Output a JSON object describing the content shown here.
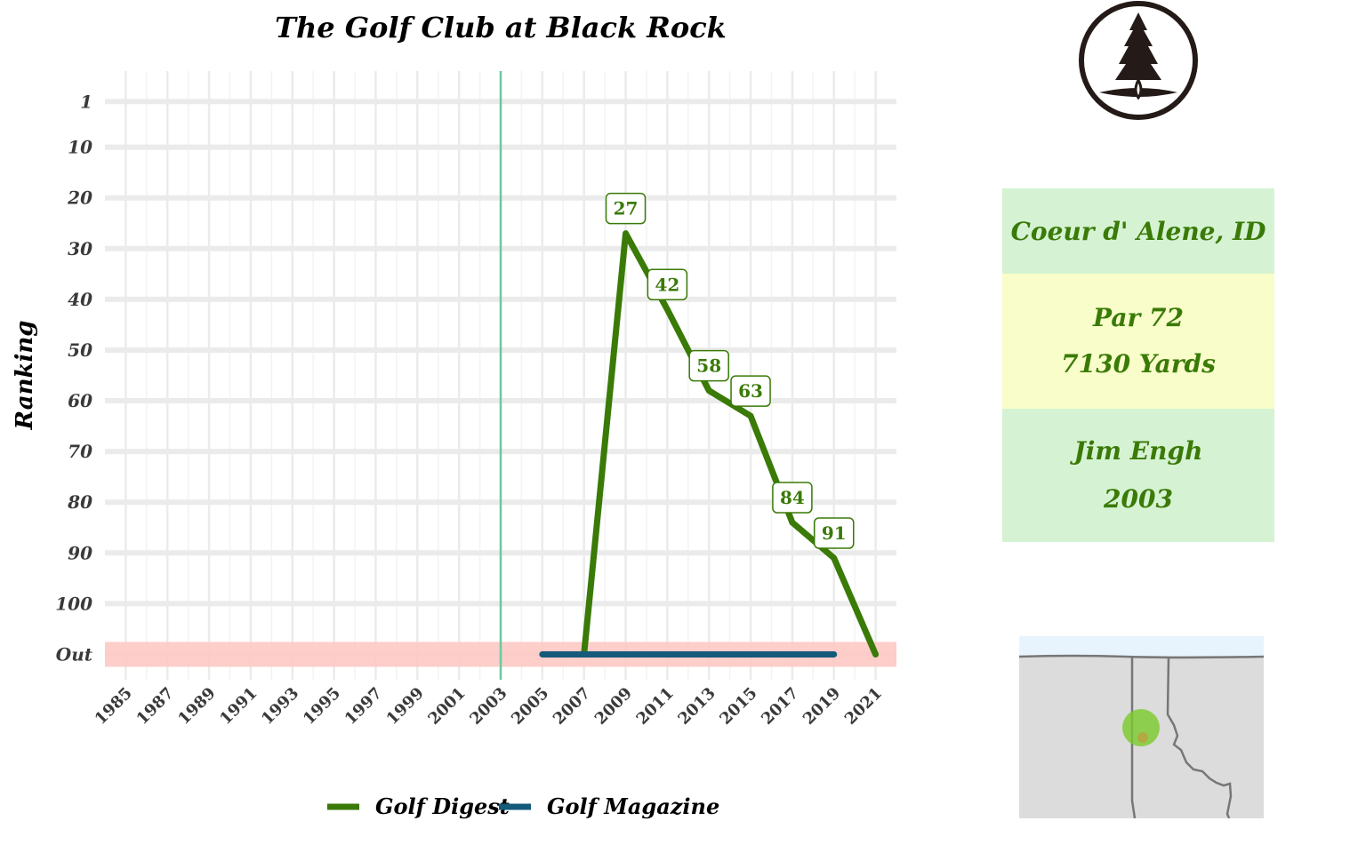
{
  "chart_data": {
    "type": "line",
    "title": "The Golf Club at Black Rock",
    "ylabel": "Ranking",
    "xlabel": "",
    "x_ticks": [
      "1985",
      "1987",
      "1989",
      "1991",
      "1993",
      "1995",
      "1997",
      "1999",
      "2001",
      "2003",
      "2005",
      "2007",
      "2009",
      "2011",
      "2013",
      "2015",
      "2017",
      "2019",
      "2021"
    ],
    "xlim": [
      1984,
      2022
    ],
    "y_ticks": [
      "1",
      "10",
      "20",
      "30",
      "40",
      "50",
      "60",
      "70",
      "80",
      "90",
      "100",
      "Out"
    ],
    "y_tick_values": [
      1,
      10,
      20,
      30,
      40,
      50,
      60,
      70,
      80,
      90,
      100,
      110
    ],
    "ylim_reversed": [
      -5,
      115
    ],
    "out_band_value": 110,
    "out_band_color": "#fdc9c4",
    "opening_year_line": 2003,
    "opening_line_color": "#6cc9a0",
    "grid": true,
    "legend_position": "bottom",
    "series": [
      {
        "name": "Golf Digest",
        "color": "#3a7a07",
        "points": [
          {
            "x": 2007,
            "y": 110,
            "label": ""
          },
          {
            "x": 2009,
            "y": 27,
            "label": "27"
          },
          {
            "x": 2011,
            "y": 42,
            "label": "42"
          },
          {
            "x": 2013,
            "y": 58,
            "label": "58"
          },
          {
            "x": 2015,
            "y": 63,
            "label": "63"
          },
          {
            "x": 2017,
            "y": 84,
            "label": "84"
          },
          {
            "x": 2019,
            "y": 91,
            "label": "91"
          },
          {
            "x": 2021,
            "y": 110,
            "label": ""
          }
        ]
      },
      {
        "name": "Golf Magazine",
        "color": "#145a7a",
        "points": [
          {
            "x": 2005,
            "y": 110,
            "label": ""
          },
          {
            "x": 2007,
            "y": 110,
            "label": ""
          },
          {
            "x": 2009,
            "y": 110,
            "label": ""
          },
          {
            "x": 2011,
            "y": 110,
            "label": ""
          },
          {
            "x": 2013,
            "y": 110,
            "label": ""
          },
          {
            "x": 2015,
            "y": 110,
            "label": ""
          },
          {
            "x": 2017,
            "y": 110,
            "label": ""
          },
          {
            "x": 2019,
            "y": 110,
            "label": ""
          }
        ]
      }
    ]
  },
  "info": {
    "location": "Coeur d' Alene, ID",
    "par": "Par 72",
    "yards": "7130 Yards",
    "designer": "Jim Engh",
    "year": "2003",
    "location_bg": "#d5f3d3",
    "par_bg": "#f8fdc9",
    "text_color": "#3a7a07"
  },
  "logo": {
    "icon": "pine-tree-icon"
  },
  "map": {
    "icon": "idaho-location-map",
    "marker_color": "#7acb2a"
  }
}
